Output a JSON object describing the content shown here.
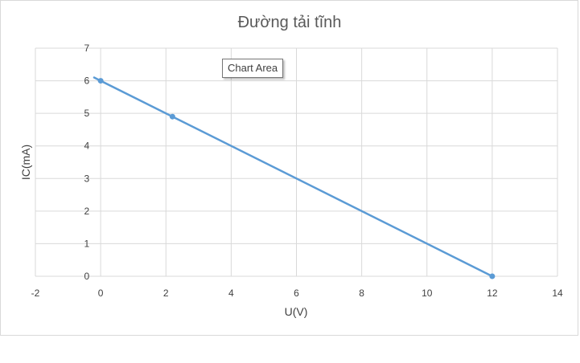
{
  "chart_data": {
    "type": "scatter",
    "title": "Đường tải tĩnh",
    "xlabel": "U(V)",
    "ylabel": "IC(mA)",
    "xlim": [
      -2,
      14
    ],
    "ylim": [
      0,
      7
    ],
    "xticks": [
      -2,
      0,
      2,
      4,
      6,
      8,
      10,
      12,
      14
    ],
    "yticks": [
      0,
      1,
      2,
      3,
      4,
      5,
      6,
      7
    ],
    "grid": true,
    "series": [
      {
        "points": [
          {
            "x": 0,
            "y": 6
          },
          {
            "x": 2.2,
            "y": 4.9
          },
          {
            "x": 12,
            "y": 0
          }
        ],
        "line_from": {
          "x": -0.2,
          "y": 6.1
        },
        "color": "#5b9bd5"
      }
    ]
  },
  "tooltip": {
    "text": "Chart Area"
  }
}
